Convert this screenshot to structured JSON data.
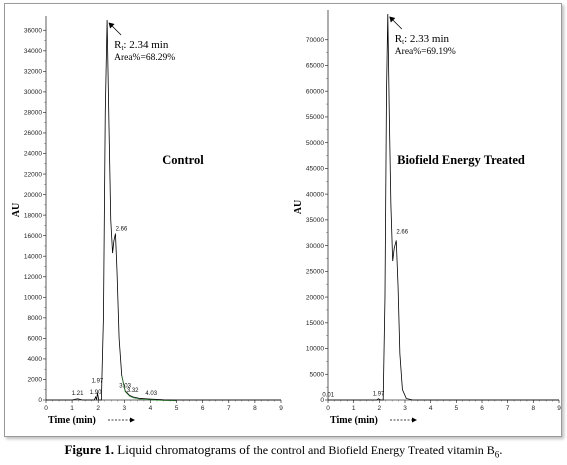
{
  "figure": {
    "caption_label": "Figure 1.",
    "caption_lead": "Liquid chromatograms of",
    "caption_rest": "the control and Biofield Energy Treated vitamin B",
    "caption_subscript": "6",
    "caption_end": "."
  },
  "chart_data": [
    {
      "type": "line",
      "group_label": "Control",
      "xlabel": "Time (min)",
      "ylabel": "AU",
      "xlim": [
        0,
        9
      ],
      "ylim": [
        0,
        37000
      ],
      "xticks": [
        0,
        1,
        2,
        3,
        4,
        5,
        6,
        7,
        8,
        9
      ],
      "yticks": [
        0,
        2000,
        4000,
        6000,
        8000,
        10000,
        12000,
        14000,
        16000,
        18000,
        20000,
        22000,
        24000,
        26000,
        28000,
        30000,
        32000,
        34000,
        36000
      ],
      "rt_text": "2.34 min",
      "area_text": "Area%=68.29%",
      "peak_labels": [
        {
          "x": 1.21,
          "label": "1.21",
          "y": 300
        },
        {
          "x": 1.9,
          "label": "1.90",
          "y": 400
        },
        {
          "x": 1.97,
          "label": "1.97",
          "y": 1500
        },
        {
          "x": 2.66,
          "label": "2.66",
          "y": 16300
        },
        {
          "x": 3.03,
          "label": "3.03",
          "y": 1000
        },
        {
          "x": 3.32,
          "label": "3.32",
          "y": 600
        },
        {
          "x": 4.03,
          "label": "4.03",
          "y": 300
        }
      ],
      "trace": [
        {
          "x": 0.0,
          "y": 0
        },
        {
          "x": 1.0,
          "y": 0
        },
        {
          "x": 1.21,
          "y": 120
        },
        {
          "x": 1.4,
          "y": 0
        },
        {
          "x": 1.85,
          "y": 0
        },
        {
          "x": 1.9,
          "y": 300
        },
        {
          "x": 1.94,
          "y": 60
        },
        {
          "x": 1.97,
          "y": 700
        },
        {
          "x": 2.02,
          "y": 0
        },
        {
          "x": 2.12,
          "y": 0
        },
        {
          "x": 2.2,
          "y": 8000
        },
        {
          "x": 2.27,
          "y": 28000
        },
        {
          "x": 2.34,
          "y": 37000
        },
        {
          "x": 2.41,
          "y": 27000
        },
        {
          "x": 2.48,
          "y": 17500
        },
        {
          "x": 2.55,
          "y": 14300
        },
        {
          "x": 2.6,
          "y": 15500
        },
        {
          "x": 2.66,
          "y": 16200
        },
        {
          "x": 2.72,
          "y": 12500
        },
        {
          "x": 2.8,
          "y": 6000
        },
        {
          "x": 2.9,
          "y": 2400
        },
        {
          "x": 3.03,
          "y": 900
        },
        {
          "x": 3.2,
          "y": 450
        },
        {
          "x": 3.32,
          "y": 300
        },
        {
          "x": 3.6,
          "y": 150
        },
        {
          "x": 4.03,
          "y": 80
        },
        {
          "x": 4.5,
          "y": 20
        },
        {
          "x": 5.0,
          "y": 0
        },
        {
          "x": 9.0,
          "y": 0
        }
      ]
    },
    {
      "type": "line",
      "group_label": "Biofield Energy Treated",
      "xlabel": "Time (min)",
      "ylabel": "AU",
      "xlim": [
        0,
        9
      ],
      "ylim": [
        0,
        75000
      ],
      "xticks": [
        0,
        1,
        2,
        3,
        4,
        5,
        6,
        7,
        8,
        9
      ],
      "yticks": [
        0,
        5000,
        10000,
        15000,
        20000,
        25000,
        30000,
        35000,
        40000,
        45000,
        50000,
        55000,
        60000,
        65000,
        70000
      ],
      "rt_text": "2.33 min",
      "area_text": "Area%=69.19%",
      "peak_labels": [
        {
          "x": 0.01,
          "label": "0.01",
          "y": 300
        },
        {
          "x": 1.97,
          "label": "1.97",
          "y": 500
        },
        {
          "x": 2.66,
          "label": "2.66",
          "y": 32000
        }
      ],
      "trace": [
        {
          "x": 0.0,
          "y": 0
        },
        {
          "x": 1.9,
          "y": 0
        },
        {
          "x": 1.97,
          "y": 250
        },
        {
          "x": 2.05,
          "y": 0
        },
        {
          "x": 2.15,
          "y": 0
        },
        {
          "x": 2.22,
          "y": 20000
        },
        {
          "x": 2.28,
          "y": 60000
        },
        {
          "x": 2.33,
          "y": 75000
        },
        {
          "x": 2.39,
          "y": 55000
        },
        {
          "x": 2.45,
          "y": 38000
        },
        {
          "x": 2.52,
          "y": 27000
        },
        {
          "x": 2.58,
          "y": 29500
        },
        {
          "x": 2.66,
          "y": 31000
        },
        {
          "x": 2.73,
          "y": 22000
        },
        {
          "x": 2.8,
          "y": 9000
        },
        {
          "x": 2.9,
          "y": 2000
        },
        {
          "x": 3.05,
          "y": 300
        },
        {
          "x": 3.3,
          "y": 0
        },
        {
          "x": 9.0,
          "y": 0
        }
      ]
    }
  ]
}
